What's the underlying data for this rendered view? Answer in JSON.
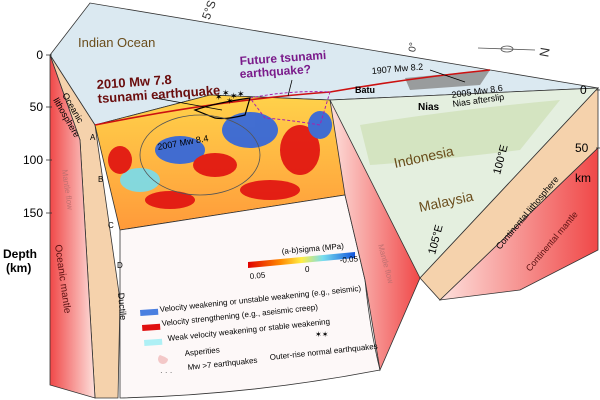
{
  "map": {
    "lat_label": "5°S",
    "equator_label": "0°",
    "lon_100": "100°E",
    "lon_105": "105°E",
    "north_label": "N",
    "places": {
      "ocean": "Indian Ocean",
      "indonesia": "Indonesia",
      "malaysia": "Malaysia",
      "batu": "Batu",
      "nias": "Nias"
    }
  },
  "annotations": {
    "eq2010_line1": "2010 Mw 7.8",
    "eq2010_line2": "tsunami earthquake",
    "future_line1": "Future tsunami",
    "future_line2": "earthquake?",
    "eq1907": "1907 Mw 8.2",
    "eq2005_line1": "2005 Mw 8.6",
    "eq2005_line2": "Nias afterslip",
    "eq2007": "2007 Mw 8.4"
  },
  "left_axis": {
    "ticks": [
      "0",
      "50",
      "100",
      "150"
    ],
    "title_line1": "Depth",
    "title_line2": "(km)"
  },
  "right_axis": {
    "ticks": [
      "0",
      "50"
    ],
    "unit": "km"
  },
  "layers": {
    "oceanic_lithosphere_line1": "Oceanic",
    "oceanic_lithosphere_line2": "lithosphere",
    "oceanic_mantle": "Oceanic mantle",
    "mantle_flow": "Mantle flow",
    "continental_lithosphere": "Continental lithosphere",
    "continental_mantle": "Continental mantle",
    "ductile": "Ductile",
    "markers": [
      "A",
      "B",
      "C",
      "D"
    ]
  },
  "colorbar": {
    "title": "(a-b)sigma (MPa)",
    "min_label": "0.05",
    "mid_label": "0",
    "max_label": "-0.05",
    "colors": [
      "#e00000",
      "#ff8800",
      "#ffee44",
      "#77ddee",
      "#1155dd"
    ]
  },
  "legend": {
    "items": [
      {
        "label": "Velocity weakening or unstable weakening (e.g., seismic)",
        "color": "#4a7fe0"
      },
      {
        "label": "Velocity strengthening (e.g., aseismic creep)",
        "color": "#e01010"
      },
      {
        "label": "Weak velocity weakening or stable weakening",
        "color": "#aef0f5"
      },
      {
        "label": "Asperities",
        "color": "#f3c8c8"
      },
      {
        "label": "Mw >7 earthquakes",
        "color": "#555555"
      }
    ],
    "outer_rise": "Outer-rise normal earthquakes"
  },
  "colors": {
    "ocean": "#dbe9f1",
    "land": "#e7f0e4",
    "lithosphere": "#f5d2ac",
    "mantle": "#f25a55",
    "trench": "#cc1111",
    "future": "#aa22aa",
    "eq2010": "#6a0d0d"
  }
}
